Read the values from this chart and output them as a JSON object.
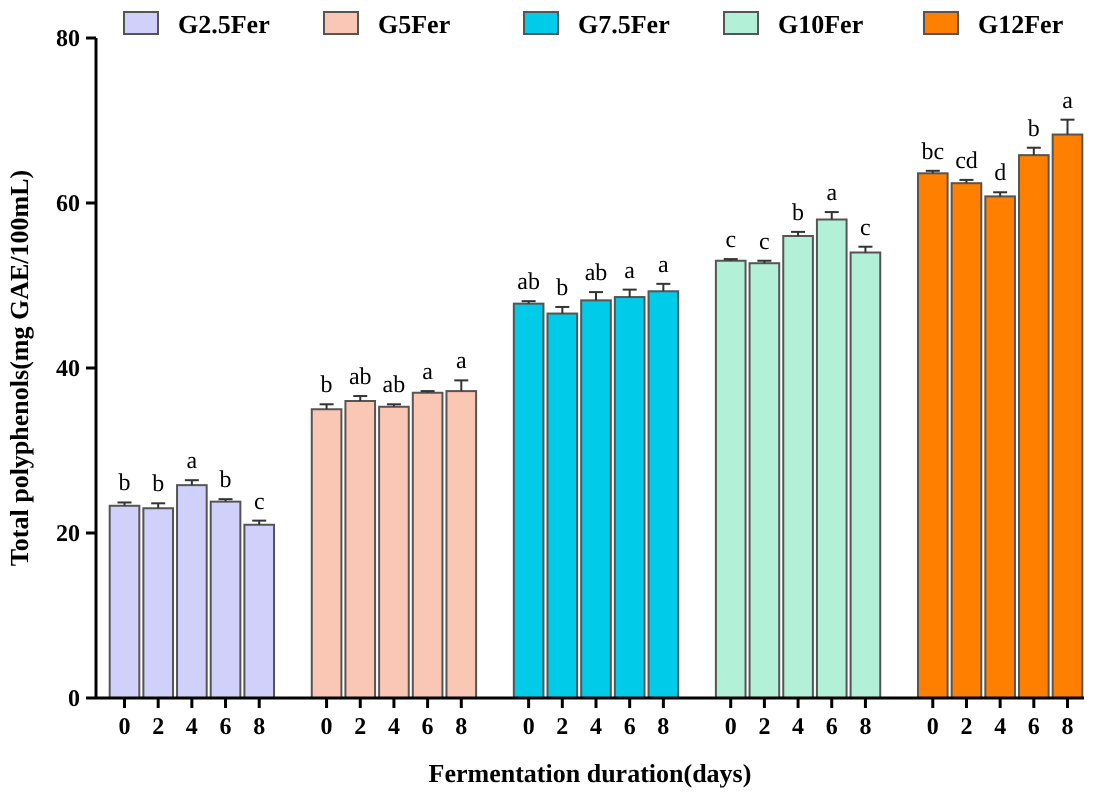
{
  "chart_data": {
    "type": "bar",
    "xlabel": "Fermentation duration(days)",
    "ylabel": "Total polyphenols(mg GAE/100mL)",
    "categories": [
      "0",
      "2",
      "4",
      "6",
      "8",
      null,
      "0",
      "2",
      "4",
      "6",
      "8",
      null,
      "0",
      "2",
      "4",
      "6",
      "8",
      null,
      "0",
      "2",
      "4",
      "6",
      "8",
      null,
      "0",
      "2",
      "4",
      "6",
      "8"
    ],
    "ylim": [
      0,
      80
    ],
    "yticks": [
      0,
      20,
      40,
      60,
      80
    ],
    "legend": "top",
    "grid": false,
    "series": [
      {
        "name": "G2.5Fer",
        "color": "#d0d0fa",
        "values": [
          23.3,
          23.0,
          25.8,
          23.8,
          21.0,
          null,
          null,
          null,
          null,
          null,
          null,
          null,
          null,
          null,
          null,
          null,
          null,
          null,
          null,
          null,
          null,
          null,
          null,
          null,
          null,
          null,
          null,
          null,
          null
        ],
        "errors": [
          0.4,
          0.6,
          0.6,
          0.3,
          0.5,
          null,
          null,
          null,
          null,
          null,
          null,
          null,
          null,
          null,
          null,
          null,
          null,
          null,
          null,
          null,
          null,
          null,
          null,
          null,
          null,
          null,
          null,
          null,
          null
        ],
        "value_labels": [
          "b",
          "b",
          "a",
          "b",
          "c",
          null,
          null,
          null,
          null,
          null,
          null,
          null,
          null,
          null,
          null,
          null,
          null,
          null,
          null,
          null,
          null,
          null,
          null,
          null,
          null,
          null,
          null,
          null,
          null
        ]
      },
      {
        "name": "G5Fer",
        "color": "#fbc7b5",
        "values": [
          null,
          null,
          null,
          null,
          null,
          null,
          35.0,
          36.0,
          35.3,
          37.0,
          37.2,
          null,
          null,
          null,
          null,
          null,
          null,
          null,
          null,
          null,
          null,
          null,
          null,
          null,
          null,
          null,
          null,
          null,
          null
        ],
        "errors": [
          null,
          null,
          null,
          null,
          null,
          null,
          0.6,
          0.6,
          0.3,
          0.2,
          1.3,
          null,
          null,
          null,
          null,
          null,
          null,
          null,
          null,
          null,
          null,
          null,
          null,
          null,
          null,
          null,
          null,
          null,
          null
        ],
        "value_labels": [
          null,
          null,
          null,
          null,
          null,
          null,
          "b",
          "ab",
          "ab",
          "a",
          "a",
          null,
          null,
          null,
          null,
          null,
          null,
          null,
          null,
          null,
          null,
          null,
          null,
          null,
          null,
          null,
          null,
          null,
          null
        ]
      },
      {
        "name": "G7.5Fer",
        "color": "#00ccea",
        "values": [
          null,
          null,
          null,
          null,
          null,
          null,
          null,
          null,
          null,
          null,
          null,
          null,
          47.8,
          46.6,
          48.2,
          48.6,
          49.3,
          null,
          null,
          null,
          null,
          null,
          null,
          null,
          null,
          null,
          null,
          null,
          null
        ],
        "errors": [
          null,
          null,
          null,
          null,
          null,
          null,
          null,
          null,
          null,
          null,
          null,
          null,
          0.3,
          0.8,
          1.0,
          0.9,
          0.9,
          null,
          null,
          null,
          null,
          null,
          null,
          null,
          null,
          null,
          null,
          null,
          null
        ],
        "value_labels": [
          null,
          null,
          null,
          null,
          null,
          null,
          null,
          null,
          null,
          null,
          null,
          null,
          "ab",
          "b",
          "ab",
          "a",
          "a",
          null,
          null,
          null,
          null,
          null,
          null,
          null,
          null,
          null,
          null,
          null,
          null
        ]
      },
      {
        "name": "G10Fer",
        "color": "#b3f0d8",
        "values": [
          null,
          null,
          null,
          null,
          null,
          null,
          null,
          null,
          null,
          null,
          null,
          null,
          null,
          null,
          null,
          null,
          null,
          null,
          53.0,
          52.7,
          56.0,
          58.0,
          54.0,
          null,
          null,
          null,
          null,
          null,
          null
        ],
        "errors": [
          null,
          null,
          null,
          null,
          null,
          null,
          null,
          null,
          null,
          null,
          null,
          null,
          null,
          null,
          null,
          null,
          null,
          null,
          0.2,
          0.3,
          0.5,
          0.9,
          0.7,
          null,
          null,
          null,
          null,
          null,
          null
        ],
        "value_labels": [
          null,
          null,
          null,
          null,
          null,
          null,
          null,
          null,
          null,
          null,
          null,
          null,
          null,
          null,
          null,
          null,
          null,
          null,
          "c",
          "c",
          "b",
          "a",
          "c",
          null,
          null,
          null,
          null,
          null,
          null
        ]
      },
      {
        "name": "G12Fer",
        "color": "#ff7f00",
        "values": [
          null,
          null,
          null,
          null,
          null,
          null,
          null,
          null,
          null,
          null,
          null,
          null,
          null,
          null,
          null,
          null,
          null,
          null,
          null,
          null,
          null,
          null,
          null,
          null,
          63.6,
          62.4,
          60.8,
          65.8,
          68.3
        ],
        "errors": [
          null,
          null,
          null,
          null,
          null,
          null,
          null,
          null,
          null,
          null,
          null,
          null,
          null,
          null,
          null,
          null,
          null,
          null,
          null,
          null,
          null,
          null,
          null,
          null,
          0.3,
          0.4,
          0.5,
          0.9,
          1.8
        ],
        "value_labels": [
          null,
          null,
          null,
          null,
          null,
          null,
          null,
          null,
          null,
          null,
          null,
          null,
          null,
          null,
          null,
          null,
          null,
          null,
          null,
          null,
          null,
          null,
          null,
          null,
          "bc",
          "cd",
          "d",
          "b",
          "a"
        ]
      }
    ]
  }
}
